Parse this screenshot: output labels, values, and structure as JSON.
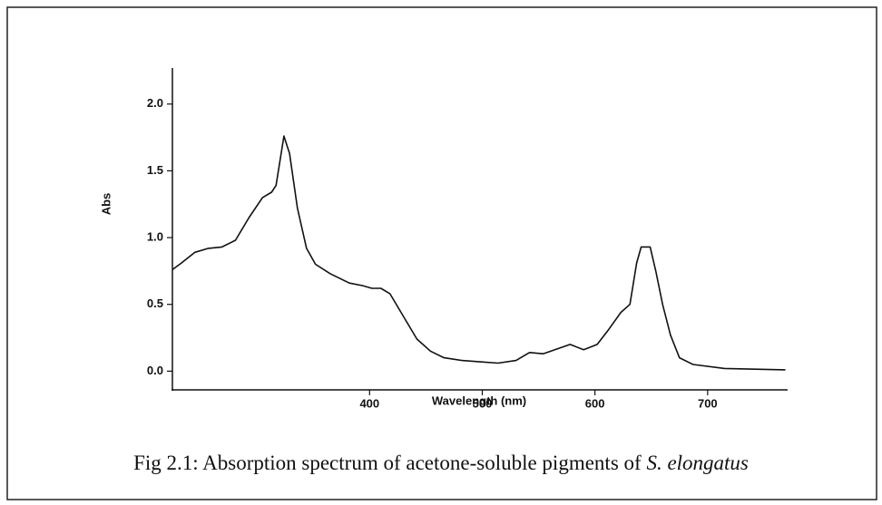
{
  "chart_data": {
    "type": "line",
    "xlabel": "Wavelength (nm)",
    "ylabel": "Abs",
    "caption": {
      "text": "Fig 2.1: Absorption spectrum of acetone-soluble pigments of ",
      "species": "S. elongatus"
    },
    "x": [
      225,
      233,
      245,
      257,
      269,
      281,
      293,
      305,
      313,
      317,
      324,
      329,
      336,
      344,
      352,
      365,
      382,
      394,
      402,
      410,
      418,
      430,
      442,
      454,
      466,
      482,
      498,
      514,
      530,
      542,
      554,
      578,
      590,
      602,
      612,
      623,
      631,
      637,
      641,
      649,
      654,
      660,
      667,
      675,
      687,
      715,
      769
    ],
    "series": [
      {
        "name": "Abs",
        "color": "#111111",
        "values": [
          0.76,
          0.81,
          0.89,
          0.92,
          0.93,
          0.98,
          1.15,
          1.3,
          1.34,
          1.39,
          1.76,
          1.63,
          1.22,
          0.92,
          0.8,
          0.73,
          0.66,
          0.64,
          0.62,
          0.62,
          0.58,
          0.41,
          0.24,
          0.15,
          0.1,
          0.08,
          0.07,
          0.06,
          0.08,
          0.14,
          0.13,
          0.2,
          0.16,
          0.2,
          0.31,
          0.44,
          0.5,
          0.81,
          0.93,
          0.93,
          0.75,
          0.5,
          0.27,
          0.1,
          0.05,
          0.02,
          0.01
        ]
      }
    ],
    "xlim": [
      225,
      771
    ],
    "xticks": [
      400,
      500,
      600,
      700
    ],
    "ylim": [
      -0.14,
      2.27
    ],
    "yticks": [
      {
        "value": 0,
        "label": "0.0"
      },
      {
        "value": 0.5,
        "label": "0.5"
      },
      {
        "value": 1,
        "label": "1.0"
      },
      {
        "value": 1.5,
        "label": "1.5"
      },
      {
        "value": 2,
        "label": "2.0"
      }
    ],
    "grid": false
  }
}
